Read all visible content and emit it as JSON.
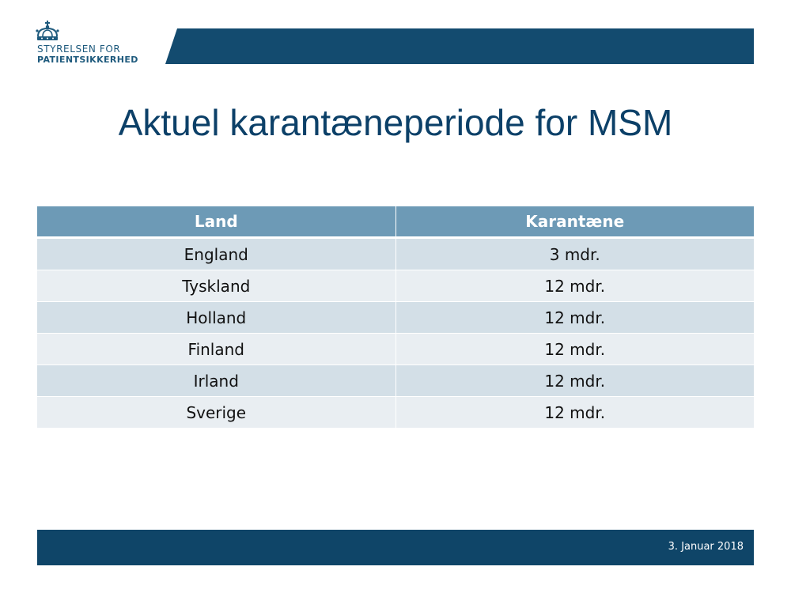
{
  "logo": {
    "line1": "STYRELSEN FOR",
    "line2": "PATIENTSIKKERHED"
  },
  "slide": {
    "title": "Aktuel karantæneperiode for MSM"
  },
  "table": {
    "headers": [
      "Land",
      "Karantæne"
    ],
    "rows": [
      [
        "England",
        "3 mdr."
      ],
      [
        "Tyskland",
        "12 mdr."
      ],
      [
        "Holland",
        "12 mdr."
      ],
      [
        "Finland",
        "12 mdr."
      ],
      [
        "Irland",
        "12 mdr."
      ],
      [
        "Sverige",
        "12 mdr."
      ]
    ]
  },
  "footer": {
    "date": "3. Januar 2018"
  },
  "colors": {
    "brand_dark": "#0f4568",
    "header_bar": "#134b6f",
    "table_header": "#6d9ab6",
    "row_odd": "#d3dfe7",
    "row_even": "#e9eef2",
    "title_text": "#0c4068"
  },
  "icons": {
    "logo_mark": "crown-icon"
  }
}
